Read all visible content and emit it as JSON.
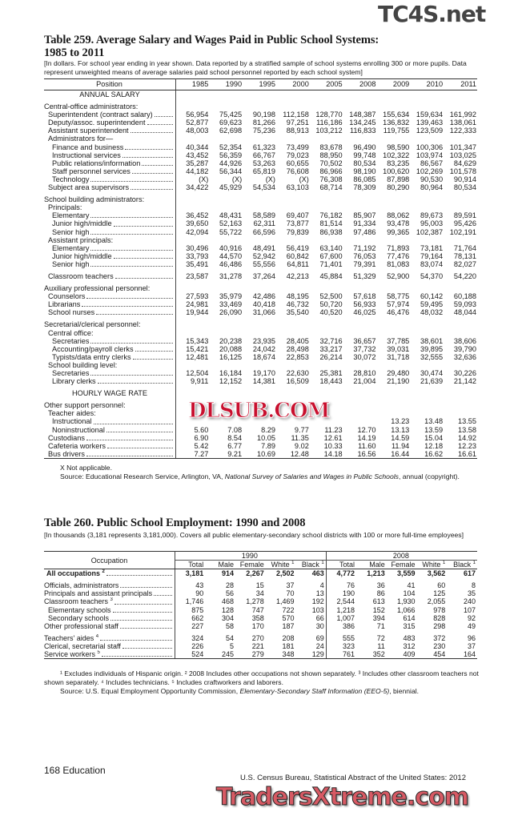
{
  "watermarks": {
    "top": "TC4S.net",
    "middle": "DLSUB.COM",
    "bottom": "TradersXtreme.com"
  },
  "table259": {
    "title_line1": "Table 259. Average Salary and Wages Paid in Public School Systems:",
    "title_line2": "1985 to 2011",
    "note": "[In dollars. For school year ending in year shown. Data reported by a stratified sample of school systems enrolling 300 or more pupils. Data represent unweighted means of average salaries paid school personnel reported by each school system]",
    "columns": [
      "Position",
      "1985",
      "1990",
      "1995",
      "2000",
      "2005",
      "2008",
      "2009",
      "2010",
      "2011"
    ],
    "rows": [
      {
        "section": "ANNUAL SALARY"
      },
      {
        "gap": true
      },
      {
        "label": "Central-office administrators:",
        "indent": 0
      },
      {
        "label": "Superintendent (contract salary)",
        "indent": 1,
        "values": [
          "56,954",
          "75,425",
          "90,198",
          "112,158",
          "128,770",
          "148,387",
          "155,634",
          "159,634",
          "161,992"
        ]
      },
      {
        "label": "Deputy/assoc. superintendent",
        "indent": 1,
        "values": [
          "52,877",
          "69,623",
          "81,266",
          "97,251",
          "116,186",
          "134,245",
          "136,832",
          "139,463",
          "138,061"
        ]
      },
      {
        "label": "Assistant superintendent",
        "indent": 1,
        "values": [
          "48,003",
          "62,698",
          "75,236",
          "88,913",
          "103,212",
          "116,833",
          "119,755",
          "123,509",
          "122,333"
        ]
      },
      {
        "label": "Administrators for—",
        "indent": 1
      },
      {
        "label": "Finance and business",
        "indent": 2,
        "values": [
          "40,344",
          "52,354",
          "61,323",
          "73,499",
          "83,678",
          "96,490",
          "98,590",
          "100,306",
          "101,347"
        ]
      },
      {
        "label": "Instructional services",
        "indent": 2,
        "values": [
          "43,452",
          "56,359",
          "66,767",
          "79,023",
          "88,950",
          "99,748",
          "102,322",
          "103,974",
          "103,025"
        ]
      },
      {
        "label": "Public relations/information",
        "indent": 2,
        "values": [
          "35,287",
          "44,926",
          "53,263",
          "60,655",
          "70,502",
          "80,534",
          "83,235",
          "86,567",
          "84,629"
        ]
      },
      {
        "label": "Staff personnel services",
        "indent": 2,
        "values": [
          "44,182",
          "56,344",
          "65,819",
          "76,608",
          "86,966",
          "98,190",
          "100,620",
          "102,269",
          "101,578"
        ]
      },
      {
        "label": "Technology",
        "indent": 2,
        "values": [
          "(X)",
          "(X)",
          "(X)",
          "(X)",
          "76,308",
          "86,085",
          "87,898",
          "90,530",
          "90,914"
        ]
      },
      {
        "label": "Subject area supervisors",
        "indent": 1,
        "values": [
          "34,422",
          "45,929",
          "54,534",
          "63,103",
          "68,714",
          "78,309",
          "80,290",
          "80,964",
          "80,534"
        ]
      },
      {
        "gap": true
      },
      {
        "label": "School building administrators:",
        "indent": 0
      },
      {
        "label": "Principals:",
        "indent": 1
      },
      {
        "label": "Elementary",
        "indent": 2,
        "values": [
          "36,452",
          "48,431",
          "58,589",
          "69,407",
          "76,182",
          "85,907",
          "88,062",
          "89,673",
          "89,591"
        ]
      },
      {
        "label": "Junior high/middle",
        "indent": 2,
        "values": [
          "39,650",
          "52,163",
          "62,311",
          "73,877",
          "81,514",
          "91,334",
          "93,478",
          "95,003",
          "95,426"
        ]
      },
      {
        "label": "Senior high",
        "indent": 2,
        "values": [
          "42,094",
          "55,722",
          "66,596",
          "79,839",
          "86,938",
          "97,486",
          "99,365",
          "102,387",
          "102,191"
        ]
      },
      {
        "label": "Assistant principals:",
        "indent": 1
      },
      {
        "label": "Elementary",
        "indent": 2,
        "values": [
          "30,496",
          "40,916",
          "48,491",
          "56,419",
          "63,140",
          "71,192",
          "71,893",
          "73,181",
          "71,764"
        ]
      },
      {
        "label": "Junior high/middle",
        "indent": 2,
        "values": [
          "33,793",
          "44,570",
          "52,942",
          "60,842",
          "67,600",
          "76,053",
          "77,476",
          "79,164",
          "78,131"
        ]
      },
      {
        "label": "Senior high",
        "indent": 2,
        "values": [
          "35,491",
          "46,486",
          "55,556",
          "64,811",
          "71,401",
          "79,391",
          "81,083",
          "83,074",
          "82,027"
        ]
      },
      {
        "gap": true
      },
      {
        "label": "Classroom teachers",
        "indent": 1,
        "values": [
          "23,587",
          "31,278",
          "37,264",
          "42,213",
          "45,884",
          "51,329",
          "52,900",
          "54,370",
          "54,220"
        ]
      },
      {
        "gap": true
      },
      {
        "label": "Auxiliary professional personnel:",
        "indent": 0
      },
      {
        "label": "Counselors",
        "indent": 1,
        "values": [
          "27,593",
          "35,979",
          "42,486",
          "48,195",
          "52,500",
          "57,618",
          "58,775",
          "60,142",
          "60,188"
        ]
      },
      {
        "label": "Librarians",
        "indent": 1,
        "values": [
          "24,981",
          "33,469",
          "40,418",
          "46,732",
          "50,720",
          "56,933",
          "57,974",
          "59,495",
          "59,093"
        ]
      },
      {
        "label": "School nurses",
        "indent": 1,
        "values": [
          "19,944",
          "26,090",
          "31,066",
          "35,540",
          "40,520",
          "46,025",
          "46,476",
          "48,032",
          "48,044"
        ]
      },
      {
        "gap": true
      },
      {
        "label": "Secretarial/clerical personnel:",
        "indent": 0
      },
      {
        "label": "Central office:",
        "indent": 1
      },
      {
        "label": "Secretaries",
        "indent": 2,
        "values": [
          "15,343",
          "20,238",
          "23,935",
          "28,405",
          "32,716",
          "36,657",
          "37,785",
          "38,601",
          "38,606"
        ]
      },
      {
        "label": "Accounting/payroll clerks",
        "indent": 2,
        "values": [
          "15,421",
          "20,088",
          "24,042",
          "28,498",
          "33,217",
          "37,732",
          "39,031",
          "39,895",
          "39,790"
        ]
      },
      {
        "label": "Typists/data entry clerks",
        "indent": 2,
        "values": [
          "12,481",
          "16,125",
          "18,674",
          "22,853",
          "26,214",
          "30,072",
          "31,718",
          "32,555",
          "32,636"
        ]
      },
      {
        "label": "School building level:",
        "indent": 1
      },
      {
        "label": "Secretaries",
        "indent": 2,
        "values": [
          "12,504",
          "16,184",
          "19,170",
          "22,630",
          "25,381",
          "28,810",
          "29,480",
          "30,474",
          "30,226"
        ]
      },
      {
        "label": "Library clerks",
        "indent": 2,
        "values": [
          "9,911",
          "12,152",
          "14,381",
          "16,509",
          "18,443",
          "21,004",
          "21,190",
          "21,639",
          "21,142"
        ]
      },
      {
        "gap": true
      },
      {
        "section": "HOURLY WAGE RATE"
      },
      {
        "gap": true
      },
      {
        "label": "Other support personnel:",
        "indent": 0
      },
      {
        "label": "Teacher aides:",
        "indent": 1
      },
      {
        "label": "Instructional",
        "indent": 2,
        "values": [
          "",
          "",
          "",
          "",
          "",
          "",
          "13.23",
          "13.48",
          "13.55"
        ]
      },
      {
        "label": "Noninstructional",
        "indent": 2,
        "values": [
          "5.60",
          "7.08",
          "8.29",
          "9.77",
          "11.23",
          "12.70",
          "13.13",
          "13.59",
          "13.58"
        ]
      },
      {
        "label": "Custodians",
        "indent": 1,
        "values": [
          "6.90",
          "8.54",
          "10.05",
          "11.35",
          "12.61",
          "14.19",
          "14.59",
          "15.04",
          "14.92"
        ]
      },
      {
        "label": "Cafeteria workers",
        "indent": 1,
        "values": [
          "5.42",
          "6.77",
          "7.89",
          "9.02",
          "10.33",
          "11.60",
          "11.94",
          "12.18",
          "12.23"
        ]
      },
      {
        "label": "Bus drivers",
        "indent": 1,
        "values": [
          "7.27",
          "9.21",
          "10.69",
          "12.48",
          "14.18",
          "16.56",
          "16.44",
          "16.62",
          "16.61"
        ]
      }
    ],
    "footnote": "X Not applicable.",
    "source_prefix": "Source: Educational Research Service, Arlington, VA, ",
    "source_title": "National Survey of Salaries and Wages in Public Schools",
    "source_suffix": ", annual (copyright)."
  },
  "table260": {
    "title": "Table 260. Public School Employment: 1990 and 2008",
    "note": "[In thousands (3,181 represents 3,181,000). Covers all public elementary-secondary school districts with 100 or more full-time employees]",
    "occupation_header": "Occupation",
    "years": [
      "1990",
      "2008"
    ],
    "subcolumns": [
      {
        "label": "Total"
      },
      {
        "label": "Male"
      },
      {
        "label": "Female"
      },
      {
        "label": "White",
        "sup": "1"
      },
      {
        "label": "Black",
        "sup": "1"
      }
    ],
    "rows": [
      {
        "label": "All occupations",
        "sup": "2",
        "bold": true,
        "values": [
          "3,181",
          "914",
          "2,267",
          "2,502",
          "463",
          "4,772",
          "1,213",
          "3,559",
          "3,562",
          "617"
        ]
      },
      {
        "gap": true
      },
      {
        "label": "Officials, administrators",
        "indent": 0,
        "values": [
          "43",
          "28",
          "15",
          "37",
          "4",
          "76",
          "36",
          "41",
          "60",
          "8"
        ]
      },
      {
        "label": "Principals and assistant principals",
        "indent": 0,
        "values": [
          "90",
          "56",
          "34",
          "70",
          "13",
          "190",
          "86",
          "104",
          "125",
          "35"
        ]
      },
      {
        "label": "Classroom teachers",
        "sup": "3",
        "indent": 0,
        "values": [
          "1,746",
          "468",
          "1,278",
          "1,469",
          "192",
          "2,544",
          "613",
          "1,930",
          "2,055",
          "240"
        ]
      },
      {
        "label": "Elementary schools",
        "indent": 1,
        "values": [
          "875",
          "128",
          "747",
          "722",
          "103",
          "1,218",
          "152",
          "1,066",
          "978",
          "107"
        ]
      },
      {
        "label": "Secondary schools",
        "indent": 1,
        "values": [
          "662",
          "304",
          "358",
          "570",
          "66",
          "1,007",
          "394",
          "614",
          "828",
          "92"
        ]
      },
      {
        "label": "Other professional staff",
        "indent": 0,
        "values": [
          "227",
          "58",
          "170",
          "187",
          "30",
          "386",
          "71",
          "315",
          "298",
          "49"
        ]
      },
      {
        "gap": true
      },
      {
        "label": "Teachers' aides",
        "sup": "4",
        "indent": 0,
        "values": [
          "324",
          "54",
          "270",
          "208",
          "69",
          "555",
          "72",
          "483",
          "372",
          "96"
        ]
      },
      {
        "label": "Clerical, secretarial staff",
        "indent": 0,
        "values": [
          "226",
          "5",
          "221",
          "181",
          "24",
          "323",
          "11",
          "312",
          "230",
          "37"
        ]
      },
      {
        "label": "Service workers",
        "sup": "5",
        "indent": 0,
        "values": [
          "524",
          "245",
          "279",
          "348",
          "129",
          "761",
          "352",
          "409",
          "454",
          "164"
        ]
      }
    ],
    "footnotes": "¹ Excludes individuals of Hispanic origin. ² 2008 Includes other occupations not shown separately. ³ Includes other classroom teachers not shown separately. ⁴ Includes technicians. ⁵ Includes craftworkers and laborers.",
    "source_prefix": "Source: U.S. Equal Employment Opportunity Commission, ",
    "source_title": "Elementary-Secondary Staff Information (EEO-5)",
    "source_suffix": ", biennial."
  },
  "footer": {
    "page": "168  Education",
    "credit": "U.S. Census Bureau, Statistical Abstract of the United States: 2012"
  }
}
